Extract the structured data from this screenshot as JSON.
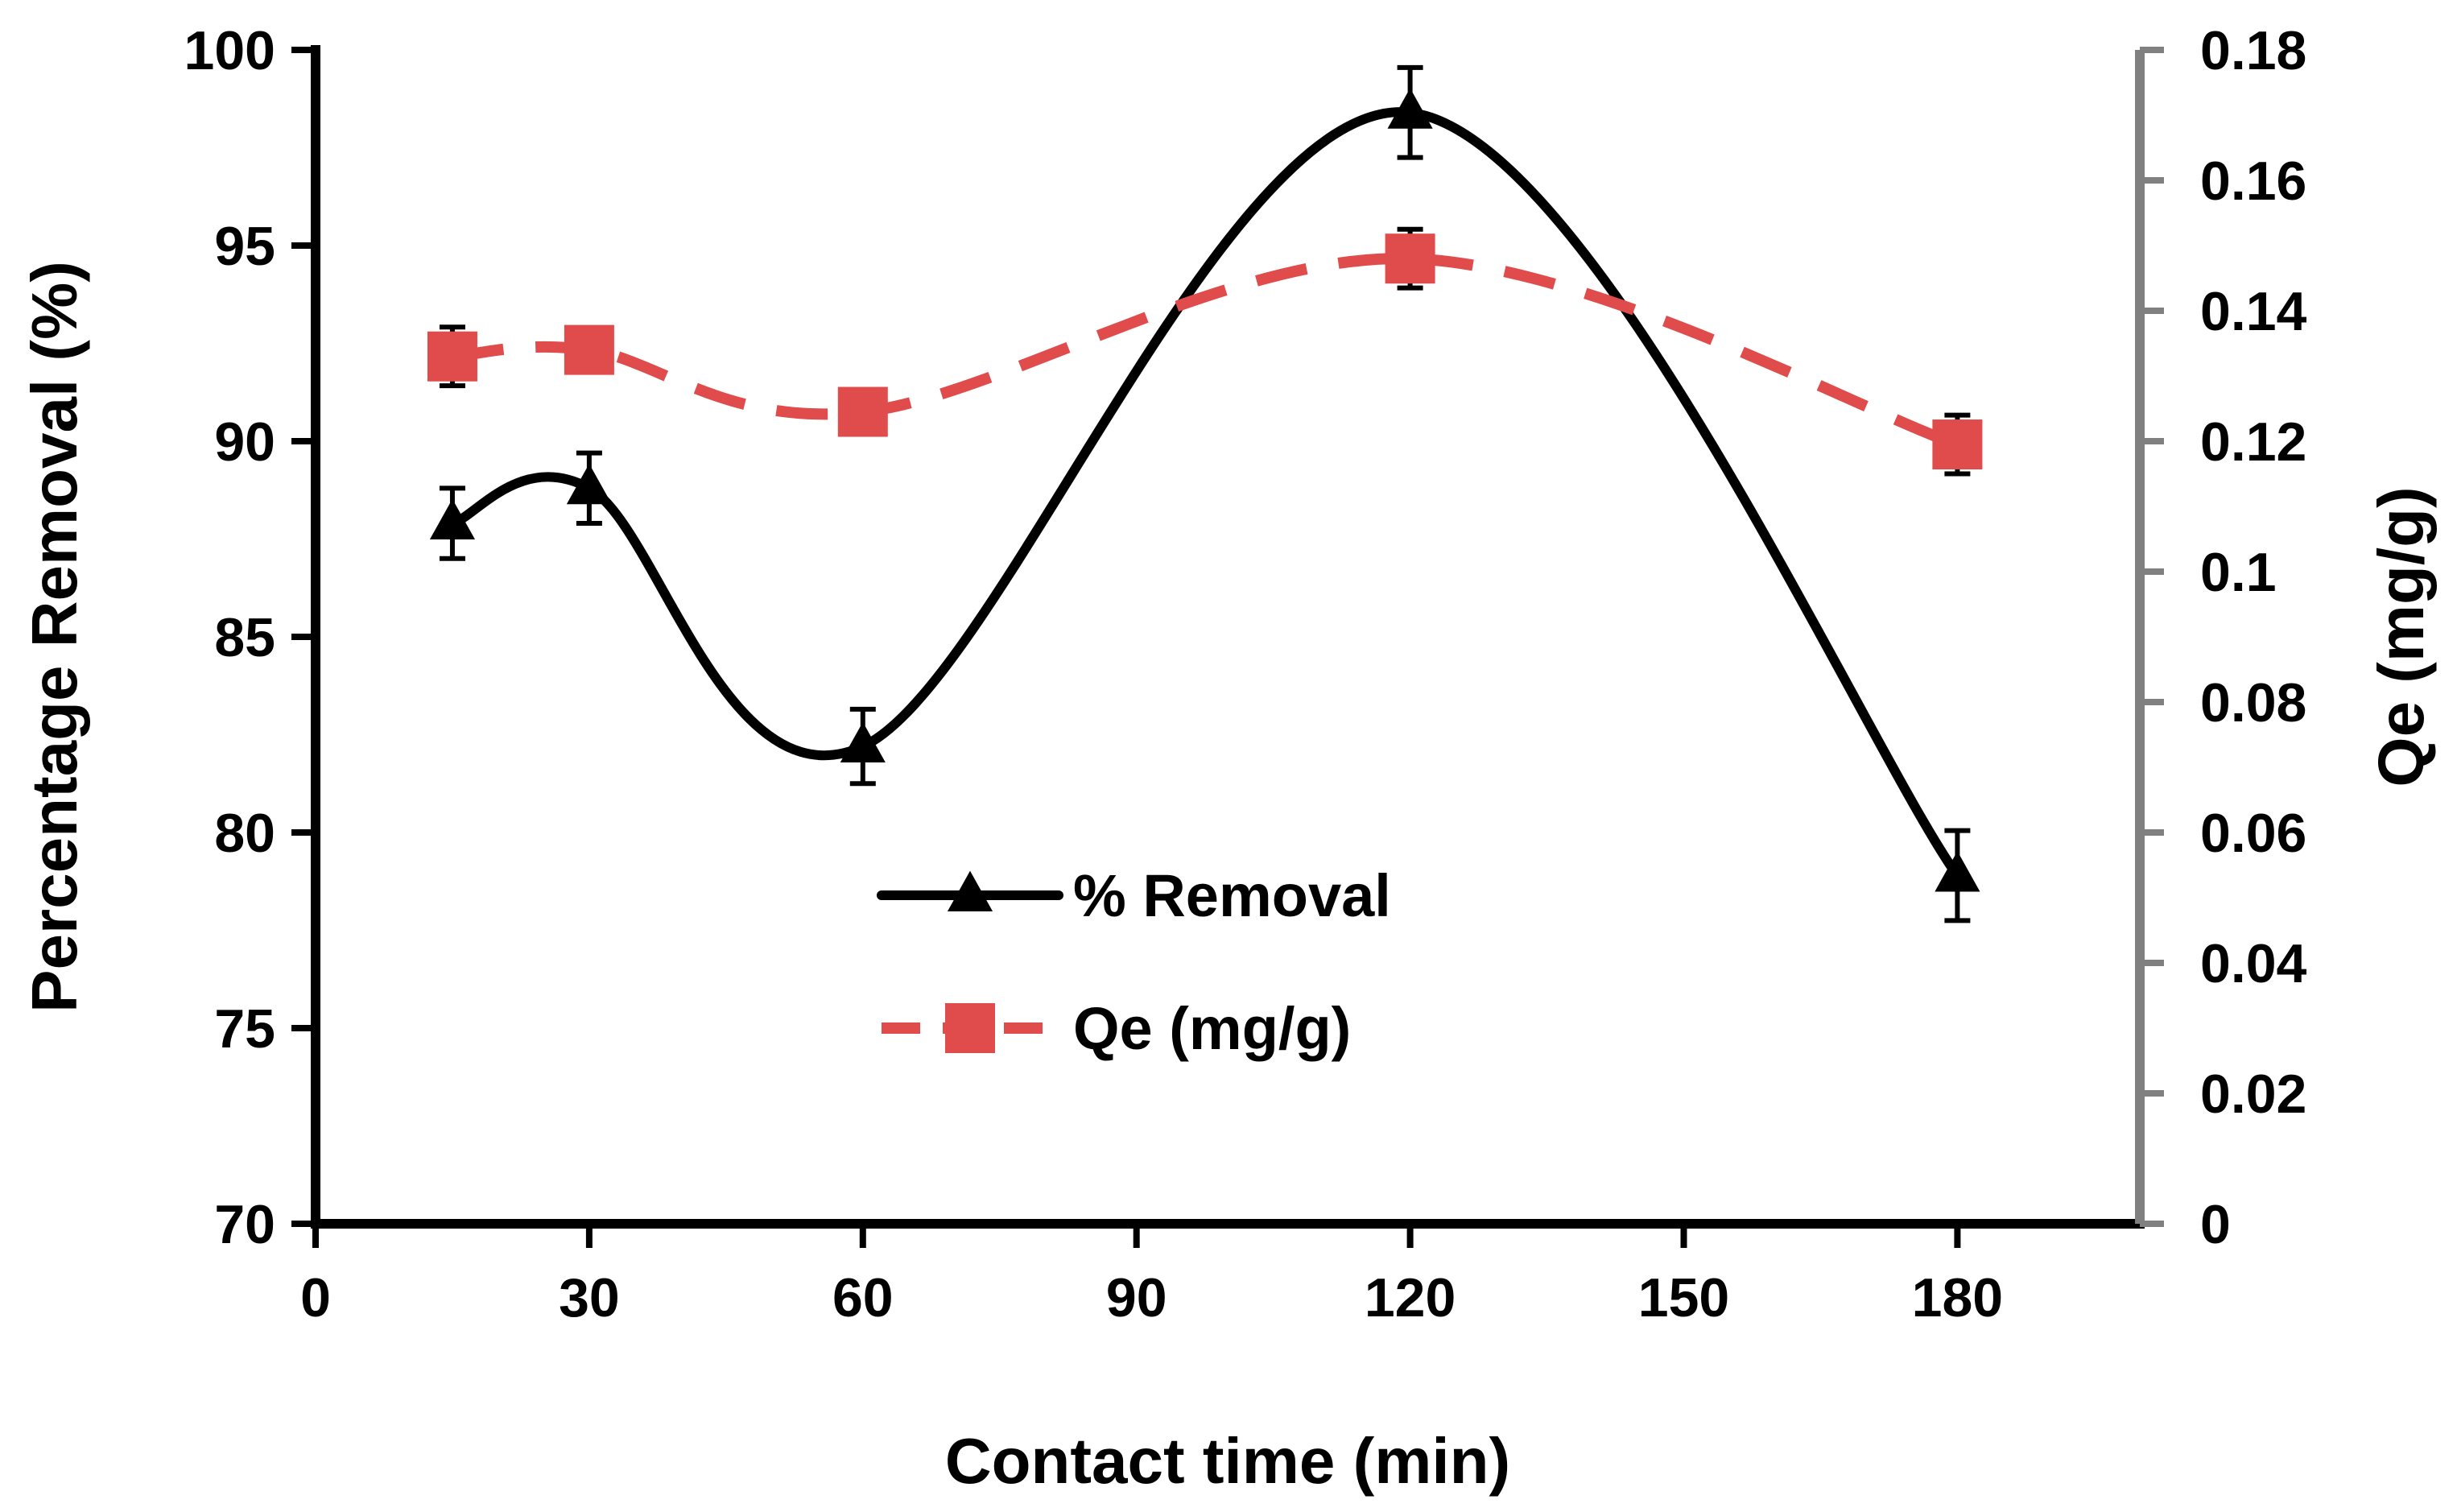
{
  "chart_data": {
    "type": "line",
    "title": "",
    "xlabel": "Contact time (min)",
    "ylabel": "Percentage Removal (%)",
    "y2label": "Qe (mg/g)",
    "xlim": [
      0,
      200
    ],
    "ylim": [
      70,
      100
    ],
    "y2lim": [
      0,
      0.18
    ],
    "x_ticks": [
      0,
      30,
      60,
      90,
      120,
      150,
      180
    ],
    "y_ticks": [
      70,
      75,
      80,
      85,
      90,
      95,
      100
    ],
    "y2_ticks": [
      0,
      0.02,
      0.04,
      0.06,
      0.08,
      0.1,
      0.12,
      0.14,
      0.16,
      0.18
    ],
    "y2_tick_labels": [
      "0",
      "0.02",
      "0.04",
      "0.06",
      "0.08",
      "0.1",
      "0.12",
      "0.14",
      "0.16",
      "0.18"
    ],
    "grid": false,
    "legend_position": "center",
    "series": [
      {
        "name": "% Removal",
        "axis": "left",
        "x": [
          15,
          30,
          60,
          120,
          180
        ],
        "values": [
          87.9,
          88.8,
          82.2,
          98.4,
          78.9
        ],
        "errors": [
          0.9,
          0.9,
          0.95,
          1.15,
          1.15
        ],
        "marker": "triangle",
        "line": "solid-smooth",
        "color": "#000000"
      },
      {
        "name": "Qe (mg/g)",
        "axis": "right",
        "x": [
          15,
          30,
          60,
          120,
          180
        ],
        "values": [
          0.133,
          0.134,
          0.1245,
          0.148,
          0.1195
        ],
        "errors": [
          0.0045,
          0,
          0,
          0.0045,
          0.0045
        ],
        "marker": "square",
        "line": "dashed",
        "color": "#E04B4B"
      }
    ]
  }
}
